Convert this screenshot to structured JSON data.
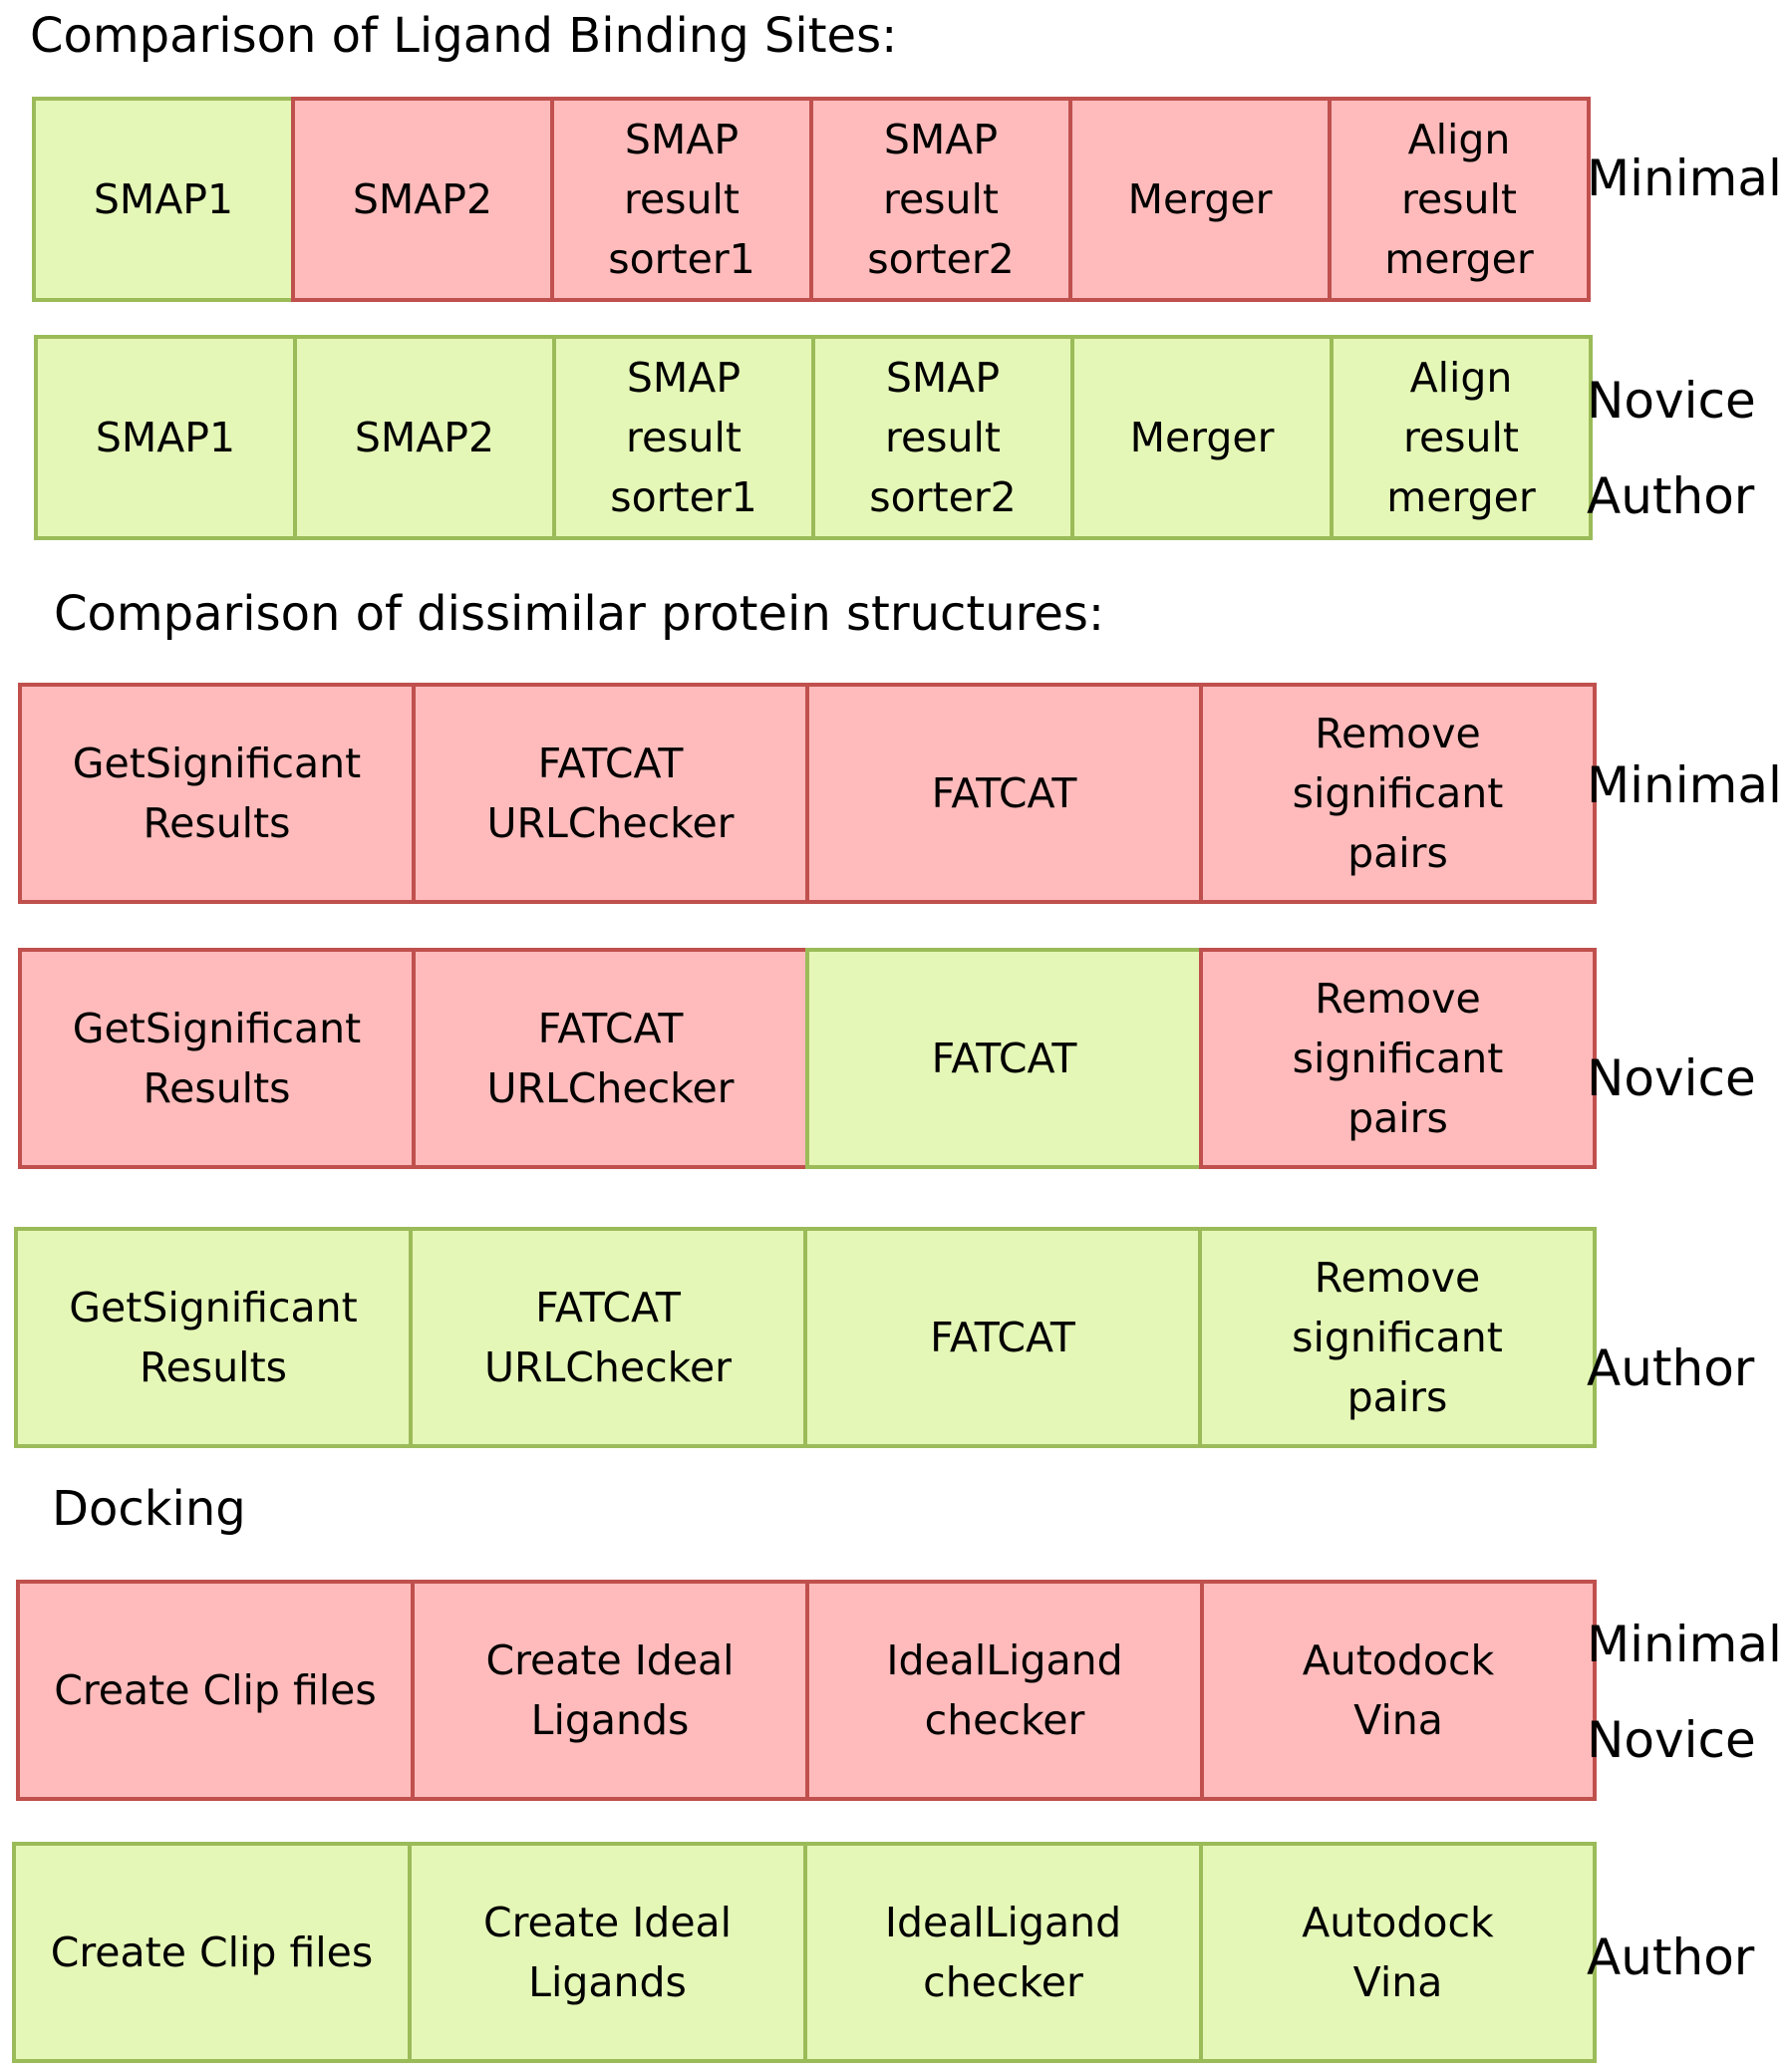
{
  "colors": {
    "fail_fill": "#ffbbbb",
    "fail_border": "#c0504d",
    "pass_fill": "#e5f7b6",
    "pass_border": "#9bbb59"
  },
  "sections": [
    {
      "title": "Comparison of Ligand Binding Sites:",
      "rows": [
        {
          "label": "Minimal",
          "cells": [
            {
              "text": "SMAP1",
              "status": "pass"
            },
            {
              "text": "SMAP2",
              "status": "fail"
            },
            {
              "text": "SMAP\nresult\nsorter1",
              "status": "fail"
            },
            {
              "text": "SMAP\nresult\nsorter2",
              "status": "fail"
            },
            {
              "text": "Merger",
              "status": "fail"
            },
            {
              "text": "Align\nresult\nmerger",
              "status": "fail"
            }
          ]
        },
        {
          "label": "Novice\nAuthor",
          "cells": [
            {
              "text": "SMAP1",
              "status": "pass"
            },
            {
              "text": "SMAP2",
              "status": "pass"
            },
            {
              "text": "SMAP\nresult\nsorter1",
              "status": "pass"
            },
            {
              "text": "SMAP\nresult\nsorter2",
              "status": "pass"
            },
            {
              "text": "Merger",
              "status": "pass"
            },
            {
              "text": "Align\nresult\nmerger",
              "status": "pass"
            }
          ]
        }
      ]
    },
    {
      "title": "Comparison of dissimilar protein structures:",
      "rows": [
        {
          "label": "Minimal",
          "cells": [
            {
              "text": "GetSignificant\nResults",
              "status": "fail"
            },
            {
              "text": "FATCAT\nURLChecker",
              "status": "fail"
            },
            {
              "text": "FATCAT",
              "status": "fail"
            },
            {
              "text": "Remove\nsignificant\npairs",
              "status": "fail"
            }
          ]
        },
        {
          "label": "Novice",
          "cells": [
            {
              "text": "GetSignificant\nResults",
              "status": "fail"
            },
            {
              "text": "FATCAT\nURLChecker",
              "status": "fail"
            },
            {
              "text": "FATCAT",
              "status": "pass"
            },
            {
              "text": "Remove\nsignificant\npairs",
              "status": "fail"
            }
          ]
        },
        {
          "label": "Author",
          "cells": [
            {
              "text": "GetSignificant\nResults",
              "status": "pass"
            },
            {
              "text": "FATCAT\nURLChecker",
              "status": "pass"
            },
            {
              "text": "FATCAT",
              "status": "pass"
            },
            {
              "text": "Remove\nsignificant\npairs",
              "status": "pass"
            }
          ]
        }
      ]
    },
    {
      "title": "Docking",
      "rows": [
        {
          "label": "Minimal\nNovice",
          "cells": [
            {
              "text": "Create Clip files",
              "status": "fail"
            },
            {
              "text": "Create Ideal\nLigands",
              "status": "fail"
            },
            {
              "text": "IdealLigand\nchecker",
              "status": "fail"
            },
            {
              "text": "Autodock\nVina",
              "status": "fail"
            }
          ]
        },
        {
          "label": "Author",
          "cells": [
            {
              "text": "Create Clip files",
              "status": "pass"
            },
            {
              "text": "Create Ideal\nLigands",
              "status": "pass"
            },
            {
              "text": "IdealLigand\nchecker",
              "status": "pass"
            },
            {
              "text": "Autodock\nVina",
              "status": "pass"
            }
          ]
        }
      ]
    }
  ]
}
